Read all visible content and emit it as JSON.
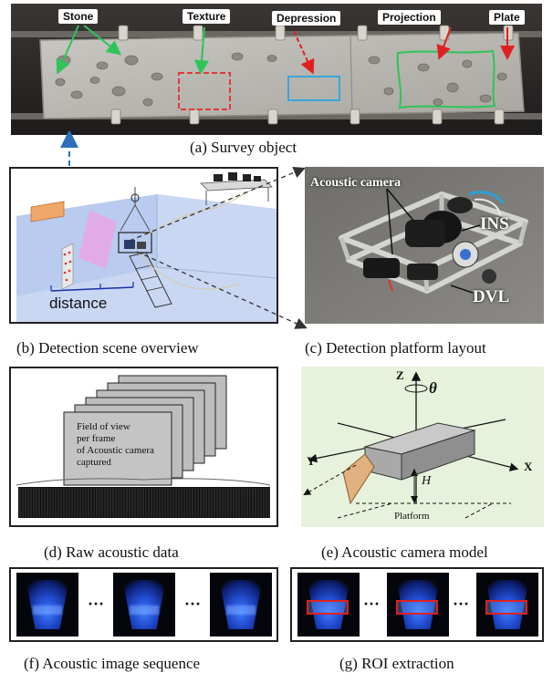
{
  "panel_a": {
    "labels": {
      "stone": "Stone",
      "texture": "Texture",
      "depression": "Depression",
      "projection": "Projection",
      "plate": "Plate"
    },
    "caption": "(a)  Survey object"
  },
  "panel_b": {
    "distance_label": "distance",
    "caption": "(b)  Detection scene overview"
  },
  "panel_c": {
    "acoustic_camera": "Acoustic camera",
    "ins": "INS",
    "dvl": "DVL",
    "caption": "(c)  Detection platform layout"
  },
  "panel_d": {
    "fov_line1": "Field of view",
    "fov_line2": "per frame",
    "fov_line3": "of Acoustic camera",
    "fov_line4": "captured",
    "caption": "(d)  Raw acoustic data"
  },
  "panel_e": {
    "z": "Z",
    "theta": "θ",
    "y": "Y",
    "x": "X",
    "h": "H",
    "platform": "Platform",
    "caption": "(e)  Acoustic camera model"
  },
  "panel_f": {
    "dots1": "···",
    "dots2": "···",
    "caption": "(f)  Acoustic image sequence"
  },
  "panel_g": {
    "dots1": "···",
    "dots2": "···",
    "caption": "(g)  ROI extraction"
  },
  "colors": {
    "texture_box": "#e03a3a",
    "depression_box": "#3aa7d8",
    "projection_outline": "#2ec45a",
    "stone_arrow": "#2ec45a",
    "red_arrow": "#e02020",
    "link_dash": "#2d6fb8",
    "roi_box": "#e02020",
    "model_bg": "#e6f2dc"
  }
}
